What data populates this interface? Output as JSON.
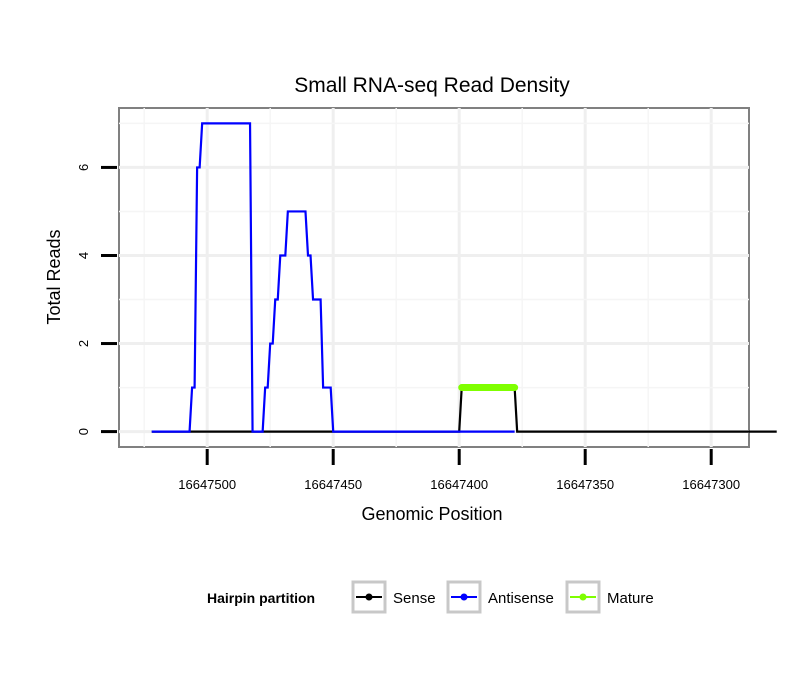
{
  "chart_data": {
    "type": "line",
    "title": "Small RNA-seq Read Density",
    "xlabel": "Genomic Position",
    "ylabel": "Total Reads",
    "x_reversed": true,
    "xlim": [
      16647285,
      16647535
    ],
    "ylim": [
      -0.35,
      7.35
    ],
    "x_ticks": [
      16647500,
      16647450,
      16647400,
      16647350,
      16647300
    ],
    "y_ticks": [
      0,
      2,
      4,
      6
    ],
    "grid": true,
    "legend": {
      "title": "Hairpin partition",
      "position": "bottom",
      "entries": [
        "Sense",
        "Antisense",
        "Mature"
      ]
    },
    "series": [
      {
        "name": "Sense",
        "color": "#000000",
        "points": [
          [
            16647522,
            0
          ],
          [
            16647400,
            0
          ],
          [
            16647399,
            1
          ],
          [
            16647378,
            1
          ],
          [
            16647377,
            0
          ],
          [
            16647274,
            0
          ]
        ]
      },
      {
        "name": "Antisense",
        "color": "#0000ff",
        "points": [
          [
            16647522,
            0
          ],
          [
            16647507,
            0
          ],
          [
            16647506,
            1
          ],
          [
            16647505,
            1
          ],
          [
            16647504,
            6
          ],
          [
            16647503,
            6
          ],
          [
            16647502,
            7
          ],
          [
            16647483,
            7
          ],
          [
            16647482,
            0
          ],
          [
            16647478,
            0
          ],
          [
            16647477,
            1
          ],
          [
            16647476,
            1
          ],
          [
            16647475,
            2
          ],
          [
            16647474,
            2
          ],
          [
            16647473,
            3
          ],
          [
            16647472,
            3
          ],
          [
            16647471,
            4
          ],
          [
            16647469,
            4
          ],
          [
            16647468,
            5
          ],
          [
            16647461,
            5
          ],
          [
            16647460,
            4
          ],
          [
            16647459,
            4
          ],
          [
            16647458,
            3
          ],
          [
            16647455,
            3
          ],
          [
            16647454,
            1
          ],
          [
            16647451,
            1
          ],
          [
            16647450,
            0
          ],
          [
            16647378,
            0
          ]
        ]
      },
      {
        "name": "Mature",
        "color": "#7fff00",
        "points": [
          [
            16647399,
            1
          ],
          [
            16647378,
            1
          ]
        ]
      }
    ]
  }
}
